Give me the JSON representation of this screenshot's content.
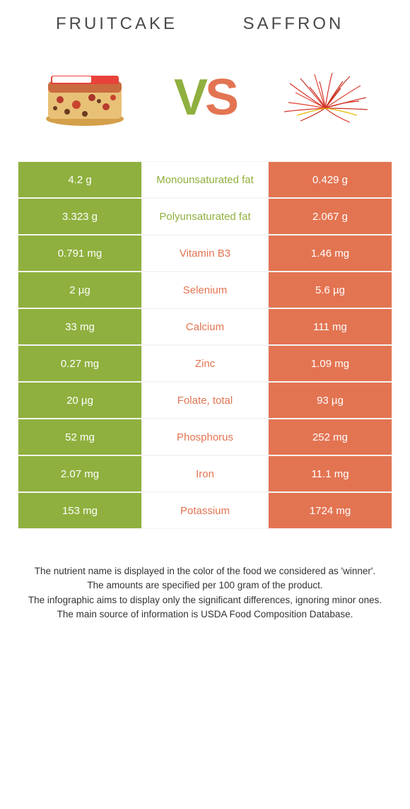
{
  "left_title": "Fruitcake",
  "right_title": "Saffron",
  "vs": {
    "v": "V",
    "s": "S"
  },
  "colors": {
    "left": "#8fb03e",
    "right": "#e37452",
    "left_text": "#8fb03e",
    "right_text": "#e37452",
    "footer": "#333333",
    "title": "#4a4a4a"
  },
  "rows": [
    {
      "left": "4.2 g",
      "mid": "Monounsaturated fat",
      "right": "0.429 g",
      "winner": "left"
    },
    {
      "left": "3.323 g",
      "mid": "Polyunsaturated fat",
      "right": "2.067 g",
      "winner": "left"
    },
    {
      "left": "0.791 mg",
      "mid": "Vitamin B3",
      "right": "1.46 mg",
      "winner": "right"
    },
    {
      "left": "2 µg",
      "mid": "Selenium",
      "right": "5.6 µg",
      "winner": "right"
    },
    {
      "left": "33 mg",
      "mid": "Calcium",
      "right": "111 mg",
      "winner": "right"
    },
    {
      "left": "0.27 mg",
      "mid": "Zinc",
      "right": "1.09 mg",
      "winner": "right"
    },
    {
      "left": "20 µg",
      "mid": "Folate, total",
      "right": "93 µg",
      "winner": "right"
    },
    {
      "left": "52 mg",
      "mid": "Phosphorus",
      "right": "252 mg",
      "winner": "right"
    },
    {
      "left": "2.07 mg",
      "mid": "Iron",
      "right": "11.1 mg",
      "winner": "right"
    },
    {
      "left": "153 mg",
      "mid": "Potassium",
      "right": "1724 mg",
      "winner": "right"
    }
  ],
  "footer_lines": [
    "The nutrient name is displayed in the color of the food we considered as 'winner'.",
    "The amounts are specified per 100 gram of the product.",
    "The infographic aims to display only the significant differences, ignoring minor ones.",
    "The main source of information is USDA Food Composition Database."
  ]
}
